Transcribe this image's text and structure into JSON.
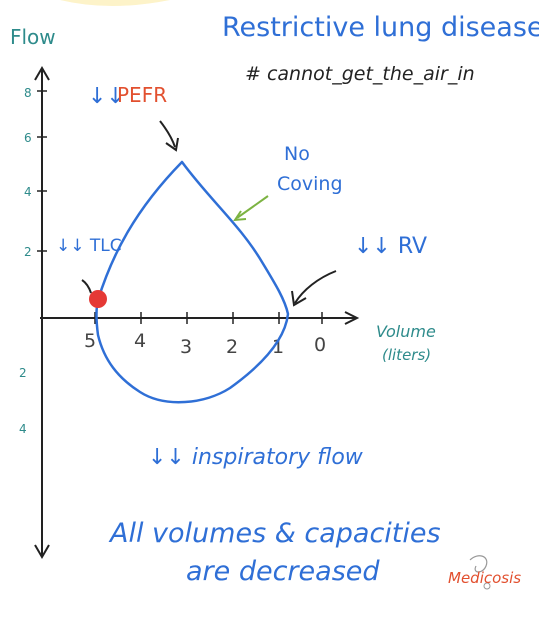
{
  "title": "Restrictive lung disease",
  "hashtag": "# cannot_get_the_air_in",
  "y_axis_label": "Flow",
  "x_axis_label": "Volume",
  "x_axis_unit": "(liters)",
  "y_ticks_top": [
    "8",
    "6",
    "4",
    "2"
  ],
  "y_ticks_bottom": [
    "2",
    "4"
  ],
  "x_ticks": [
    "5",
    "4",
    "3",
    "2",
    "1",
    "0"
  ],
  "annotations": {
    "pefr_arrows": "↓↓",
    "pefr": "PEFR",
    "no_coving_line1": "No",
    "no_coving_line2": "Coving",
    "tlc": "↓↓ TLC",
    "rv": "↓↓ RV",
    "inspiratory": "↓↓ inspiratory flow",
    "summary_line1": "All volumes & capacities",
    "summary_line2": "are decreased"
  },
  "logo_text": "Medicosis",
  "colors": {
    "blue": "#2f6fd6",
    "teal": "#2e8b8b",
    "red": "#e2502f",
    "green": "#7cb342",
    "dark": "#222222",
    "dot": "#e53935"
  }
}
